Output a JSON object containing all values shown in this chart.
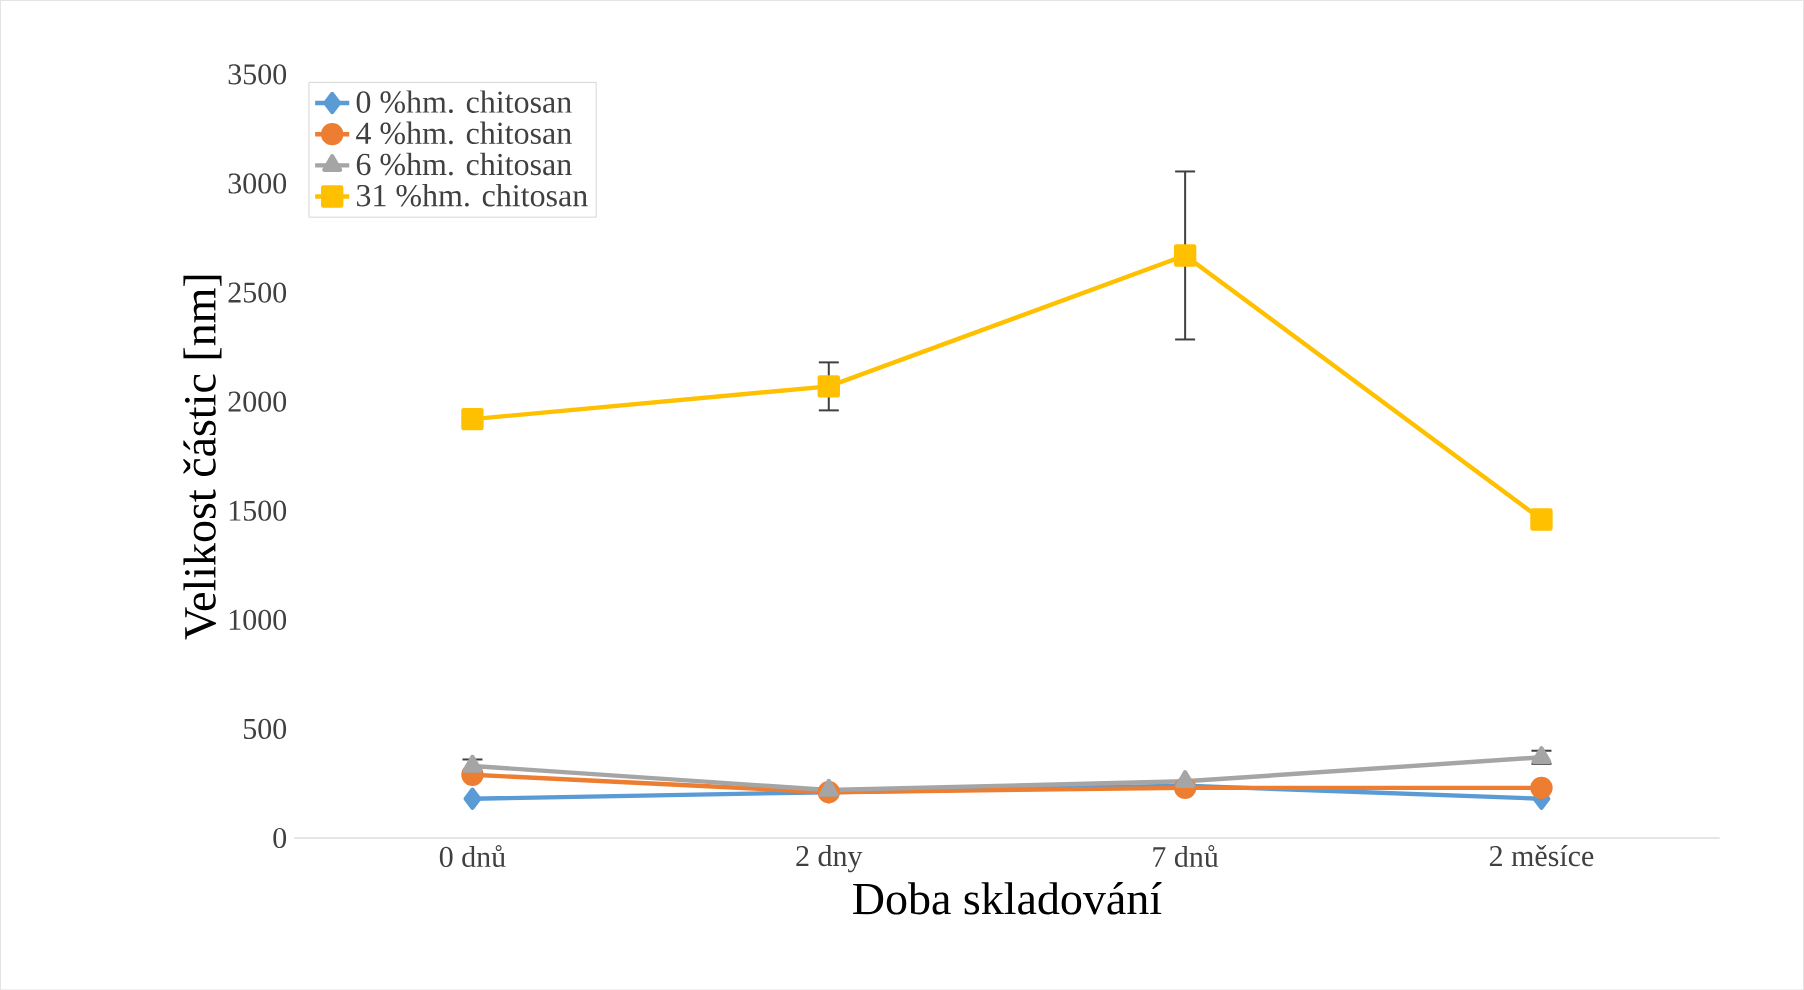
{
  "chart_data": {
    "type": "line",
    "xlabel": "Doba skladování",
    "ylabel": "Velikost částic [nm]",
    "categories": [
      "0 dnů",
      "2 dny",
      "7 dnů",
      "2 měsíce"
    ],
    "ylim": [
      0,
      3500
    ],
    "yticks": [
      0,
      500,
      1000,
      1500,
      2000,
      2500,
      3000,
      3500
    ],
    "legend": "top left",
    "line_style": "solid",
    "series": [
      {
        "name": "0 %hm. chitosan",
        "color": "#5b9bd5",
        "marker": "diamond",
        "values": [
          180,
          210,
          240,
          180
        ]
      },
      {
        "name": "4 %hm. chitosan",
        "color": "#ed7d31",
        "marker": "circle",
        "values": [
          290,
          210,
          230,
          230
        ]
      },
      {
        "name": "6 %hm. chitosan",
        "color": "#a5a5a5",
        "marker": "triangle",
        "values": [
          330,
          220,
          260,
          370
        ],
        "errors": [
          30,
          null,
          null,
          30
        ]
      },
      {
        "name": "31 %hm. chitosan",
        "color": "#ffc000",
        "marker": "square",
        "values": [
          1920,
          2070,
          2670,
          1460
        ],
        "errors": [
          null,
          110,
          385,
          null
        ]
      }
    ]
  }
}
